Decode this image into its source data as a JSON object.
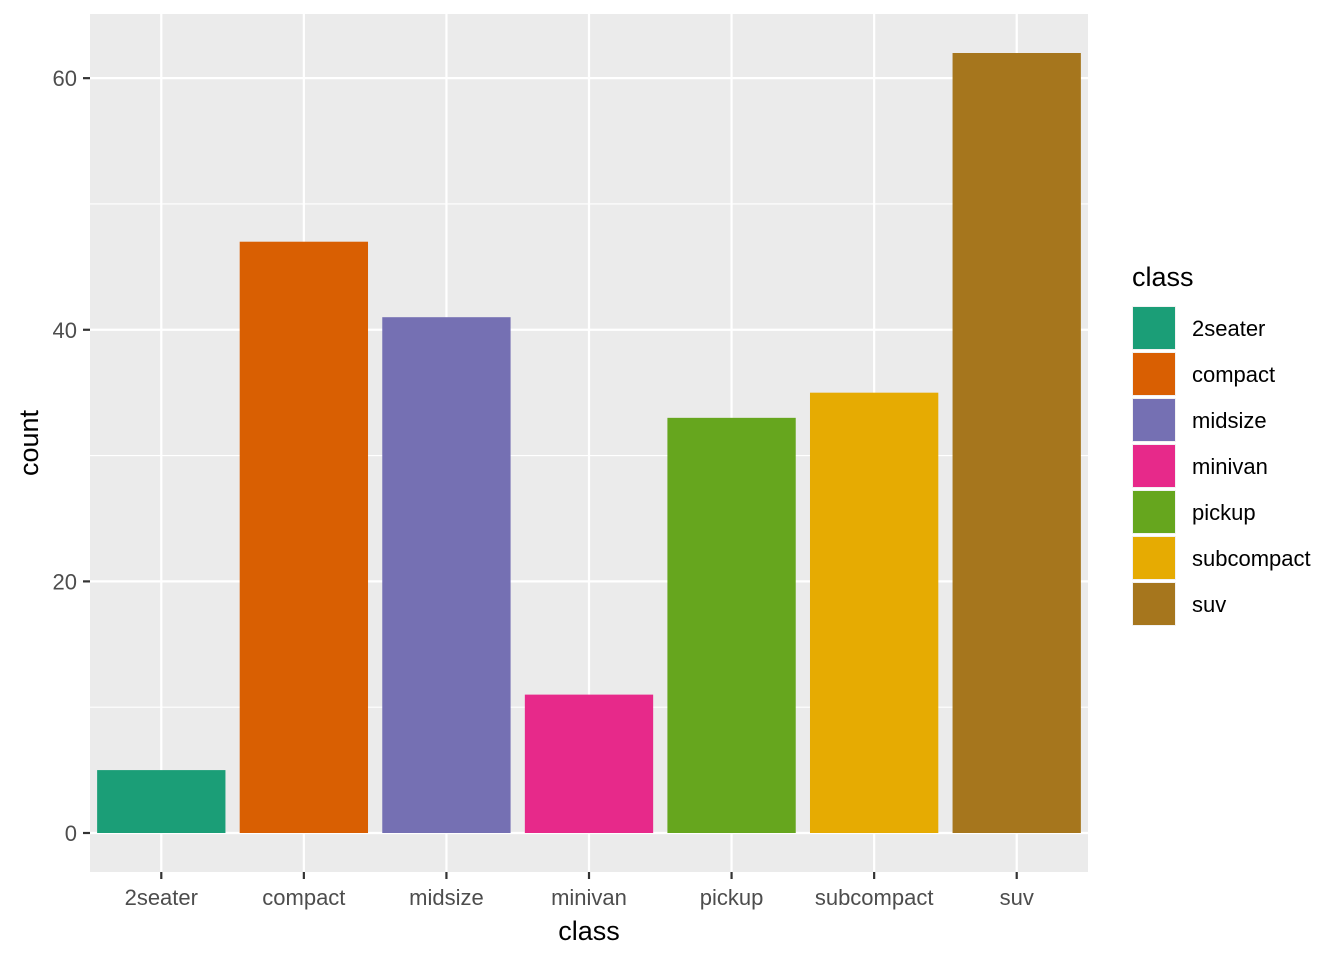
{
  "chart_data": {
    "type": "bar",
    "title": "",
    "xlabel": "class",
    "ylabel": "count",
    "categories": [
      "2seater",
      "compact",
      "midsize",
      "minivan",
      "pickup",
      "subcompact",
      "suv"
    ],
    "values": [
      5,
      47,
      41,
      11,
      33,
      35,
      62
    ],
    "colors": [
      "#1B9E77",
      "#D95F02",
      "#7570B3",
      "#E7298A",
      "#66A61E",
      "#E6AB02",
      "#A6761D"
    ],
    "ylim": [
      -3.1,
      65.1
    ],
    "yticks": [
      0,
      20,
      40,
      60
    ],
    "y_minor_ticks": [
      10,
      30,
      50
    ],
    "grid": true,
    "panel_background": "#EBEBEB",
    "legend": {
      "title": "class",
      "placement": "right"
    }
  }
}
